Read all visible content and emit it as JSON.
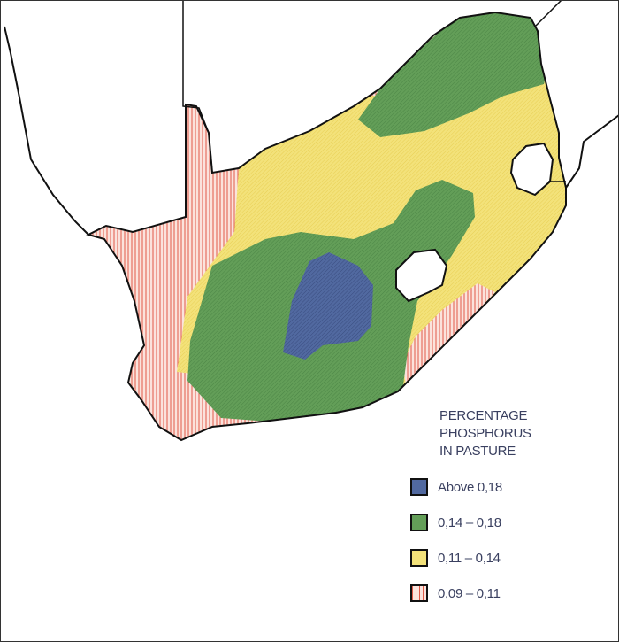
{
  "legend": {
    "title_lines": [
      "PERCENTAGE",
      "PHOSPHORUS",
      "IN PASTURE"
    ],
    "items": [
      {
        "label": "Above 0,18",
        "color": "#4a5f95"
      },
      {
        "label": "0,14 – 0,18",
        "color": "#5e9a55"
      },
      {
        "label": "0,11 – 0,14",
        "color": "#f0de6a"
      },
      {
        "label": "0,09 – 0,11",
        "color": "#f3b4a4"
      }
    ]
  },
  "colors": {
    "coastline": "#111111",
    "hatch_pink": "#e04a3a",
    "background": "#ffffff"
  }
}
